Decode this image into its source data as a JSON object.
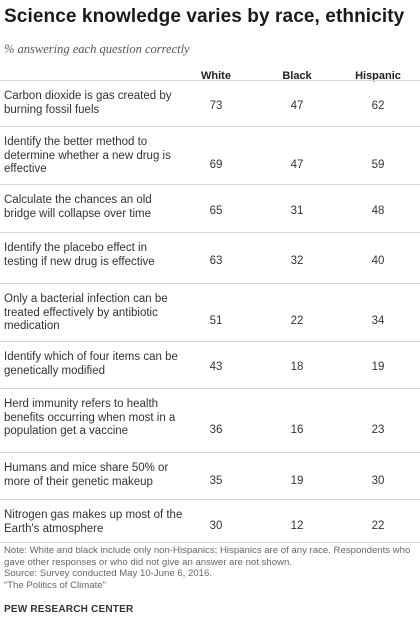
{
  "chart_data": {
    "type": "table",
    "title": "Science knowledge varies by race, ethnicity",
    "subtitle": "% answering each question correctly",
    "columns": [
      "White",
      "Black",
      "Hispanic"
    ],
    "rows": [
      {
        "label": "Carbon dioxide is gas created by burning fossil fuels",
        "values": [
          73,
          47,
          62
        ]
      },
      {
        "label": "Identify the better method to determine whether a new drug is effective",
        "values": [
          69,
          47,
          59
        ]
      },
      {
        "label": "Calculate the chances an old bridge will collapse over time",
        "values": [
          65,
          31,
          48
        ]
      },
      {
        "label": "Identify the placebo effect in testing if new drug is effective",
        "values": [
          63,
          32,
          40
        ]
      },
      {
        "label": "Only a bacterial infection can be treated effectively by antibiotic medication",
        "values": [
          51,
          22,
          34
        ]
      },
      {
        "label": "Identify which of four items can be genetically modified",
        "values": [
          43,
          18,
          19
        ]
      },
      {
        "label": "Herd immunity refers to health benefits occurring when most in a population get a vaccine",
        "values": [
          36,
          16,
          23
        ]
      },
      {
        "label": "Humans and mice share 50% or more of their genetic makeup",
        "values": [
          35,
          19,
          30
        ]
      },
      {
        "label": "Nitrogen gas makes up most of the Earth's atmosphere",
        "values": [
          30,
          12,
          22
        ]
      }
    ]
  },
  "notes": {
    "note": "Note: White and black include only non-Hispanics; Hispanics are of any race. Respondents who gave other responses or who did not give an answer are not shown.",
    "source": "Source: Survey conducted May 10-June 6, 2016.",
    "report": "“The Politics of Climate”"
  },
  "brand": "PEW RESEARCH CENTER"
}
